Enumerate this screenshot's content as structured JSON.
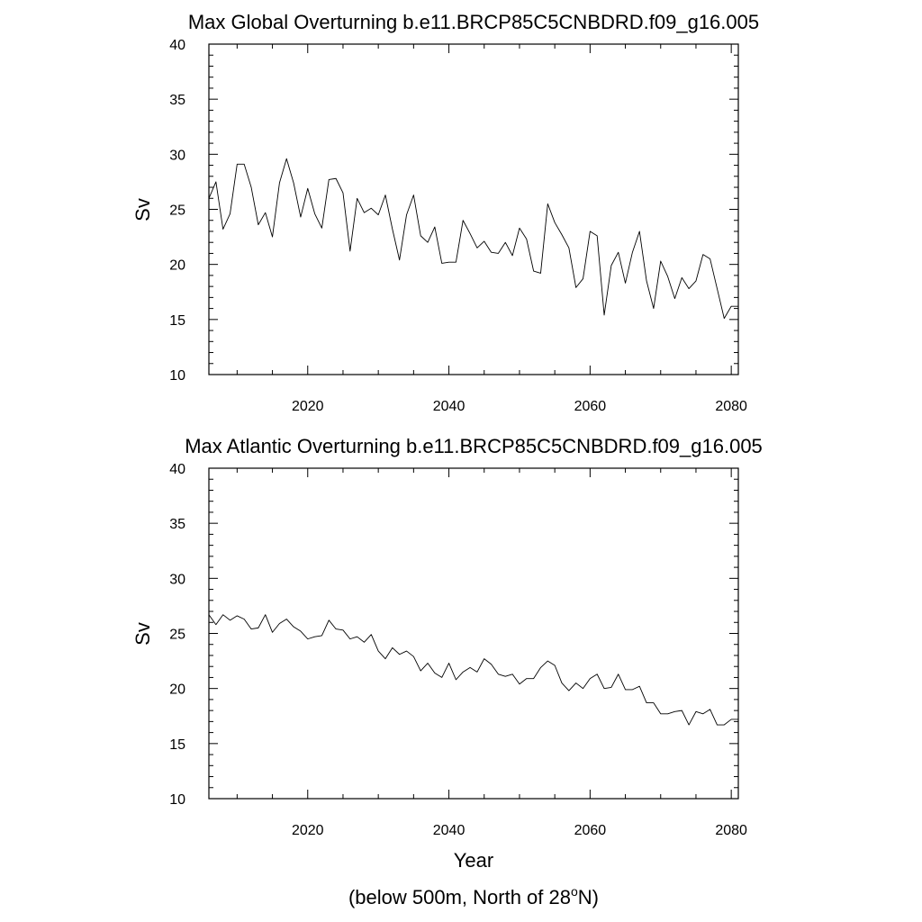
{
  "figure": {
    "x_axis_title": "Year",
    "footnote_main": "(below 500m, North of 28",
    "footnote_sup": "o",
    "footnote_end": "N)"
  },
  "chart_data": [
    {
      "type": "line",
      "title": "Max Global Overturning b.e11.BRCP85C5CNBDRD.f09_g16.005",
      "xlabel": "",
      "ylabel": "Sv",
      "xlim": [
        2006,
        2081
      ],
      "ylim": [
        10,
        40
      ],
      "x_ticks": [
        2020,
        2040,
        2060,
        2080
      ],
      "y_ticks": [
        10,
        15,
        20,
        25,
        30,
        35,
        40
      ],
      "x_minor_step": 5,
      "y_minor_step": 1,
      "grid": false,
      "series": [
        {
          "x": [
            2006,
            2007,
            2008,
            2009,
            2010,
            2011,
            2012,
            2013,
            2014,
            2015,
            2016,
            2017,
            2018,
            2019,
            2020,
            2021,
            2022,
            2023,
            2024,
            2025,
            2026,
            2027,
            2028,
            2029,
            2030,
            2031,
            2032,
            2033,
            2034,
            2035,
            2036,
            2037,
            2038,
            2039,
            2040,
            2041,
            2042,
            2043,
            2044,
            2045,
            2046,
            2047,
            2048,
            2049,
            2050,
            2051,
            2052,
            2053,
            2054,
            2055,
            2056,
            2057,
            2058,
            2059,
            2060,
            2061,
            2062,
            2063,
            2064,
            2065,
            2066,
            2067,
            2068,
            2069,
            2070,
            2071,
            2072,
            2073,
            2074,
            2075,
            2076,
            2077,
            2078,
            2079,
            2080,
            2081
          ],
          "values": [
            26.0,
            27.5,
            23.2,
            24.6,
            29.1,
            29.1,
            27.0,
            23.6,
            24.7,
            22.5,
            27.4,
            29.6,
            27.4,
            24.3,
            26.9,
            24.6,
            23.3,
            27.7,
            27.8,
            26.5,
            21.2,
            26.0,
            24.7,
            25.1,
            24.5,
            26.3,
            23.2,
            20.4,
            24.5,
            26.3,
            22.6,
            22.0,
            23.4,
            20.1,
            20.2,
            20.2,
            24.0,
            22.8,
            21.5,
            22.1,
            21.1,
            21.0,
            22.0,
            20.8,
            23.3,
            22.3,
            19.4,
            19.2,
            25.5,
            23.8,
            22.7,
            21.5,
            17.9,
            18.7,
            23.0,
            22.6,
            15.4,
            19.9,
            21.1,
            18.3,
            21.1,
            23.0,
            18.5,
            16.0,
            20.3,
            18.9,
            16.9,
            18.8,
            17.8,
            18.5,
            20.9,
            20.5,
            17.8,
            15.1,
            16.2,
            16.2
          ]
        }
      ]
    },
    {
      "type": "line",
      "title": "Max Atlantic Overturning b.e11.BRCP85C5CNBDRD.f09_g16.005",
      "xlabel": "Year",
      "ylabel": "Sv",
      "xlim": [
        2006,
        2081
      ],
      "ylim": [
        10,
        40
      ],
      "x_ticks": [
        2020,
        2040,
        2060,
        2080
      ],
      "y_ticks": [
        10,
        15,
        20,
        25,
        30,
        35,
        40
      ],
      "x_minor_step": 5,
      "y_minor_step": 1,
      "grid": false,
      "series": [
        {
          "x": [
            2006,
            2007,
            2008,
            2009,
            2010,
            2011,
            2012,
            2013,
            2014,
            2015,
            2016,
            2017,
            2018,
            2019,
            2020,
            2021,
            2022,
            2023,
            2024,
            2025,
            2026,
            2027,
            2028,
            2029,
            2030,
            2031,
            2032,
            2033,
            2034,
            2035,
            2036,
            2037,
            2038,
            2039,
            2040,
            2041,
            2042,
            2043,
            2044,
            2045,
            2046,
            2047,
            2048,
            2049,
            2050,
            2051,
            2052,
            2053,
            2054,
            2055,
            2056,
            2057,
            2058,
            2059,
            2060,
            2061,
            2062,
            2063,
            2064,
            2065,
            2066,
            2067,
            2068,
            2069,
            2070,
            2071,
            2072,
            2073,
            2074,
            2075,
            2076,
            2077,
            2078,
            2079,
            2080,
            2081
          ],
          "values": [
            26.7,
            25.8,
            26.7,
            26.2,
            26.6,
            26.3,
            25.4,
            25.5,
            26.7,
            25.1,
            25.9,
            26.3,
            25.6,
            25.2,
            24.5,
            24.7,
            24.8,
            26.2,
            25.4,
            25.3,
            24.5,
            24.7,
            24.2,
            24.9,
            23.4,
            22.7,
            23.7,
            23.1,
            23.4,
            22.9,
            21.6,
            22.3,
            21.4,
            21.0,
            22.3,
            20.8,
            21.5,
            21.9,
            21.5,
            22.7,
            22.2,
            21.3,
            21.1,
            21.3,
            20.4,
            20.9,
            20.9,
            21.9,
            22.5,
            22.1,
            20.5,
            19.8,
            20.5,
            20.0,
            20.9,
            21.3,
            20.0,
            20.1,
            21.3,
            19.9,
            19.9,
            20.2,
            18.7,
            18.7,
            17.7,
            17.7,
            17.9,
            18.0,
            16.7,
            17.9,
            17.7,
            18.1,
            16.7,
            16.7,
            17.2,
            17.2
          ]
        }
      ]
    }
  ]
}
